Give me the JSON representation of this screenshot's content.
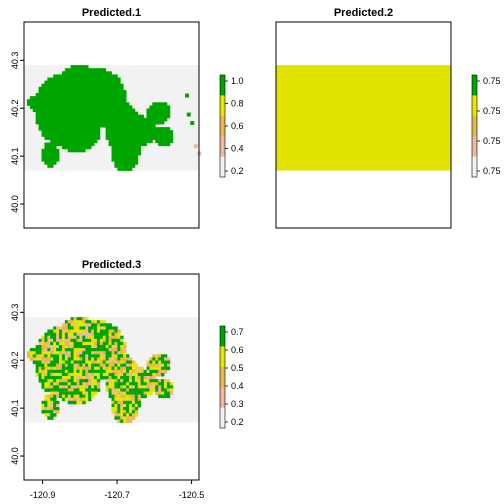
{
  "panels": [
    {
      "title": "Predicted.1",
      "variant": "binary",
      "yticks": [
        "40.0",
        "40.1",
        "40.2",
        "40.3"
      ],
      "legend_ticks": [
        "0.2",
        "0.4",
        "0.6",
        "0.8",
        "1.0"
      ],
      "legend_colors": [
        "#00a600",
        "#e6e600",
        "#eab64e",
        "#eeb99f",
        "#f2f2f2"
      ]
    },
    {
      "title": "Predicted.2",
      "variant": "uniform",
      "yticks": [],
      "legend_ticks": [
        "0.75",
        "0.75",
        "0.75",
        "0.75"
      ],
      "legend_colors": [
        "#00a600",
        "#e6e600",
        "#eab64e",
        "#eeb99f",
        "#f2f2f2"
      ]
    },
    {
      "title": "Predicted.3",
      "variant": "mixed",
      "yticks": [
        "40.0",
        "40.1",
        "40.2",
        "40.3"
      ],
      "xticks": [
        "-120.9",
        "-120.7",
        "-120.5"
      ],
      "legend_ticks": [
        "0.2",
        "0.3",
        "0.4",
        "0.5",
        "0.6",
        "0.7"
      ],
      "legend_colors": [
        "#00a600",
        "#e6e600",
        "#eab64e",
        "#eeb99f",
        "#f2f2f2"
      ]
    }
  ],
  "chart_data": {
    "type": "heatmap",
    "layers": [
      {
        "name": "Predicted.1",
        "value_range": [
          0.1,
          1.0
        ]
      },
      {
        "name": "Predicted.2",
        "value_range": [
          0.75,
          0.75
        ]
      },
      {
        "name": "Predicted.3",
        "value_range": [
          0.15,
          0.75
        ]
      }
    ],
    "xlim": [
      -120.95,
      -120.48
    ],
    "ylim": [
      39.95,
      40.38
    ],
    "raster_extent": {
      "x": [
        -120.95,
        -120.48
      ],
      "y": [
        40.07,
        40.29
      ]
    },
    "colors": {
      "background": "#f2f2f2",
      "high": "#00a600",
      "mid": "#e6e600",
      "low": "#eab64e",
      "pink": "#eeb99f"
    }
  }
}
